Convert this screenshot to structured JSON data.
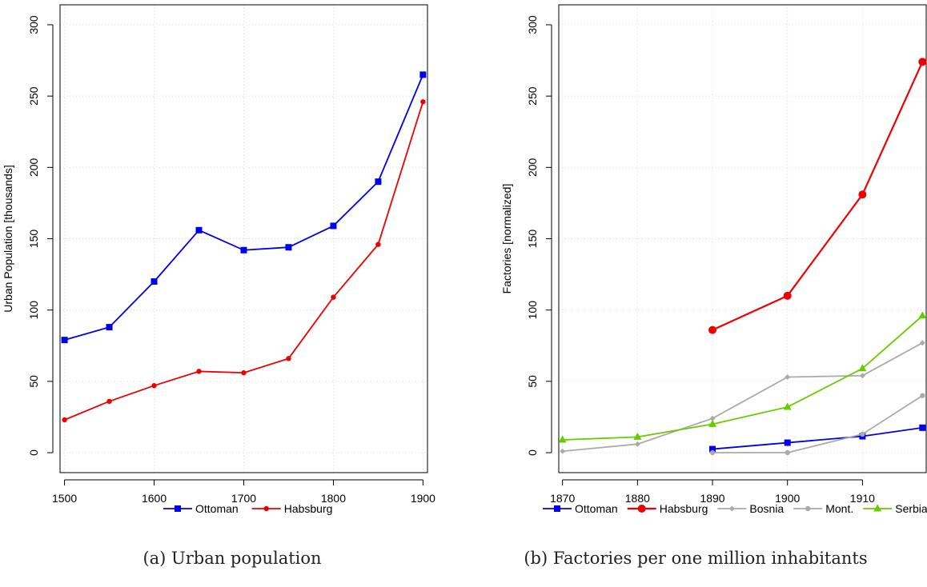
{
  "chart_data": [
    {
      "type": "line",
      "caption": "(a) Urban population",
      "ylabel": "Urban Population [thousands]",
      "xlabel": "",
      "x_ticks": [
        1500,
        1600,
        1700,
        1800,
        1900
      ],
      "y_ticks": [
        0,
        50,
        100,
        150,
        200,
        250,
        300
      ],
      "xlim": [
        1495,
        1905
      ],
      "ylim": [
        -14,
        314
      ],
      "grid": true,
      "legend_position": "bottom",
      "series": [
        {
          "name": "Ottoman",
          "color": "#0000ee",
          "marker": "square",
          "points": [
            [
              1500,
              79
            ],
            [
              1550,
              88
            ],
            [
              1600,
              120
            ],
            [
              1650,
              156
            ],
            [
              1700,
              142
            ],
            [
              1750,
              144
            ],
            [
              1800,
              159
            ],
            [
              1850,
              190
            ],
            [
              1900,
              265
            ]
          ]
        },
        {
          "name": "Habsburg",
          "color": "#ee0000",
          "marker": "circle-small",
          "points": [
            [
              1500,
              23
            ],
            [
              1550,
              36
            ],
            [
              1600,
              47
            ],
            [
              1650,
              57
            ],
            [
              1700,
              56
            ],
            [
              1750,
              66
            ],
            [
              1800,
              109
            ],
            [
              1850,
              146
            ],
            [
              1900,
              246
            ]
          ]
        }
      ]
    },
    {
      "type": "line",
      "caption": "(b) Factories per one million inhabitants",
      "ylabel": "Factories [normalized]",
      "xlabel": "",
      "x_ticks": [
        1870,
        1880,
        1890,
        1900,
        1910
      ],
      "y_ticks": [
        0,
        50,
        100,
        150,
        200,
        250,
        300
      ],
      "xlim": [
        1869.5,
        1918.5
      ],
      "ylim": [
        -14,
        314
      ],
      "grid": true,
      "legend_position": "bottom",
      "series": [
        {
          "name": "Ottoman",
          "color": "#0000ee",
          "marker": "square",
          "points": [
            [
              1890,
              2.5
            ],
            [
              1900,
              7
            ],
            [
              1910,
              11.5
            ],
            [
              1918,
              17.5
            ]
          ]
        },
        {
          "name": "Habsburg",
          "color": "#ee0000",
          "marker": "circle",
          "points": [
            [
              1890,
              86
            ],
            [
              1900,
              110
            ],
            [
              1910,
              181
            ],
            [
              1918,
              274
            ]
          ]
        },
        {
          "name": "Bosnia",
          "color": "#aaaaaa",
          "marker": "diamond-small",
          "points": [
            [
              1870,
              1
            ],
            [
              1880,
              6
            ],
            [
              1890,
              24
            ],
            [
              1900,
              53
            ],
            [
              1910,
              54
            ],
            [
              1918,
              77
            ]
          ]
        },
        {
          "name": "Mont.",
          "color": "#aaaaaa",
          "marker": "circle-small",
          "points": [
            [
              1890,
              0
            ],
            [
              1900,
              0
            ],
            [
              1910,
              13
            ],
            [
              1918,
              40
            ]
          ]
        },
        {
          "name": "Serbia",
          "color": "#66cc00",
          "marker": "triangle",
          "points": [
            [
              1870,
              9
            ],
            [
              1880,
              11
            ],
            [
              1890,
              20
            ],
            [
              1900,
              32
            ],
            [
              1910,
              59
            ],
            [
              1918,
              96
            ]
          ]
        }
      ]
    }
  ]
}
